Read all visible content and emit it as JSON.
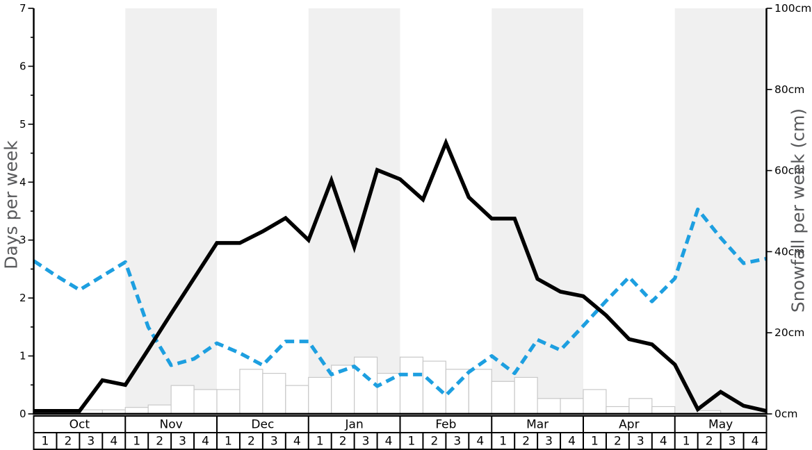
{
  "chart_data": {
    "type": "line",
    "title": "",
    "left_axis": {
      "label": "Days per week",
      "min": 0,
      "max": 7,
      "major_step": 1,
      "minor_step": 0.5,
      "tick_labels": [
        "0",
        "1",
        "2",
        "3",
        "4",
        "5",
        "6",
        "7"
      ]
    },
    "right_axis": {
      "label": "Snowfall per week (cm)",
      "min": 0,
      "max": 100,
      "major_step": 20,
      "tick_labels": [
        "0cm",
        "20cm",
        "40cm",
        "60cm",
        "80cm",
        "100cm"
      ]
    },
    "x_axis": {
      "months": [
        "Oct",
        "Nov",
        "Dec",
        "Jan",
        "Feb",
        "Mar",
        "Apr",
        "May"
      ],
      "week_labels": [
        "1",
        "2",
        "3",
        "4"
      ],
      "shaded_months": [
        "Nov",
        "Jan",
        "Mar",
        "May"
      ],
      "points_per_month": 4
    },
    "series": [
      {
        "name": "days-per-week-solid-line",
        "type": "line",
        "style": "solid",
        "axis": "left",
        "color": "#000000",
        "values": [
          0.05,
          0.05,
          0.05,
          0.58,
          0.5,
          1.11,
          1.73,
          2.34,
          2.95,
          2.95,
          3.15,
          3.38,
          3.0,
          4.03,
          2.88,
          4.21,
          4.05,
          3.7,
          4.68,
          3.74,
          3.37,
          3.37,
          2.33,
          2.11,
          2.03,
          1.7,
          1.29,
          1.2,
          0.85,
          0.08,
          0.38,
          0.14,
          0.05
        ]
      },
      {
        "name": "days-per-week-dashed-line",
        "type": "line",
        "style": "dashed",
        "axis": "left",
        "color": "#1d9fe0",
        "values": [
          2.64,
          2.38,
          2.14,
          2.38,
          2.62,
          1.5,
          0.84,
          0.95,
          1.22,
          1.05,
          0.84,
          1.25,
          1.25,
          0.68,
          0.82,
          0.48,
          0.68,
          0.68,
          0.32,
          0.72,
          1.0,
          0.7,
          1.28,
          1.1,
          1.52,
          1.95,
          2.36,
          1.94,
          2.34,
          3.53,
          3.04,
          2.6,
          2.68
        ]
      },
      {
        "name": "snowfall-per-week-bars",
        "type": "bar",
        "axis": "right",
        "unit": "cm",
        "values": [
          0.3,
          0.7,
          1.0,
          1.0,
          1.6,
          2.2,
          7.0,
          6.0,
          6.0,
          11.0,
          10.0,
          7.0,
          9.0,
          12.0,
          14.0,
          10.0,
          14.0,
          13.0,
          11.0,
          11.0,
          8.0,
          9.0,
          3.8,
          3.8,
          6.0,
          1.8,
          3.8,
          1.8,
          0.0,
          0.8,
          0.0,
          0.0
        ]
      }
    ],
    "colors": {
      "band": "#f0f0f0",
      "bar_fill": "#ffffff",
      "bar_border": "#c8c8c8",
      "solid_line": "#000000",
      "dashed_line": "#1d9fe0",
      "axis_title": "#58595b",
      "tick_label": "#000000",
      "table_border": "#000000"
    }
  }
}
